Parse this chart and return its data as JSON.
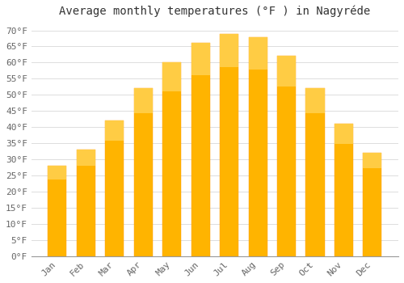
{
  "title": "Average monthly temperatures (°F ) in Nagyréde",
  "months": [
    "Jan",
    "Feb",
    "Mar",
    "Apr",
    "May",
    "Jun",
    "Jul",
    "Aug",
    "Sep",
    "Oct",
    "Nov",
    "Dec"
  ],
  "values": [
    28,
    33,
    42,
    52,
    60,
    66,
    69,
    68,
    62,
    52,
    41,
    32
  ],
  "bar_color": "#FFA500",
  "bar_color_light": "#FFD040",
  "background_color": "#FFFFFF",
  "grid_color": "#DDDDDD",
  "ylim": [
    0,
    72
  ],
  "yticks": [
    0,
    5,
    10,
    15,
    20,
    25,
    30,
    35,
    40,
    45,
    50,
    55,
    60,
    65,
    70
  ],
  "title_fontsize": 10,
  "tick_fontsize": 8,
  "font_color": "#666666",
  "title_color": "#333333",
  "bar_width": 0.65
}
